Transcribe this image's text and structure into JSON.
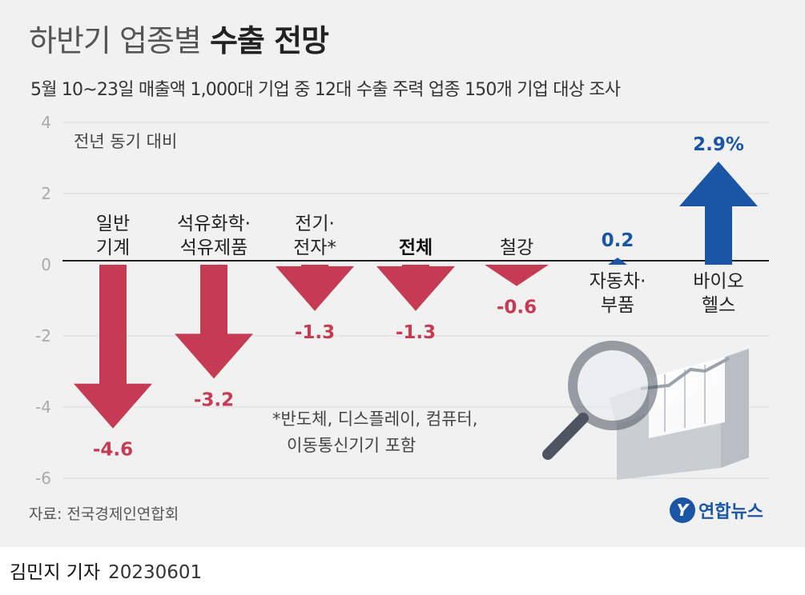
{
  "header": {
    "title_light": "하반기 업종별",
    "title_bold": "수출 전망",
    "subtitle": "5월 10~23일 매출액 1,000대 기업 중 12대 수출 주력 업종 150개 기업 대상 조사"
  },
  "chart_data": {
    "type": "bar",
    "unit_label": "전년 동기 대비",
    "categories": [
      [
        "일반",
        "기계"
      ],
      [
        "석유화학·",
        "석유제품"
      ],
      [
        "전기·",
        "전자*"
      ],
      [
        "전체"
      ],
      [
        "철강"
      ],
      [
        "자동차·",
        "부품"
      ],
      [
        "바이오",
        "헬스"
      ]
    ],
    "values": [
      -4.6,
      -3.2,
      -1.3,
      -1.3,
      -0.6,
      0.2,
      2.9
    ],
    "value_labels": [
      "-4.6",
      "-3.2",
      "-1.3",
      "-1.3",
      "-0.6",
      "0.2",
      "2.9%"
    ],
    "highlight_category": "전체",
    "yticks": [
      "4",
      "2",
      "0",
      "-2",
      "-4",
      "-6"
    ],
    "ylim": [
      -6,
      4
    ],
    "grid": true,
    "colors": {
      "negative": "#c43b53",
      "positive": "#1b56a4"
    },
    "footnote_lines": [
      "*반도체, 디스플레이, 컴퓨터,",
      "이동통신기기 포함"
    ]
  },
  "footer": {
    "source": "자료: 전국경제인연합회",
    "logo_text": "연합뉴스",
    "logo_mark": "Y",
    "byline": "김민지 기자",
    "date": "20230601"
  },
  "illustration": {
    "icon": "magnifier-chart-icon"
  }
}
